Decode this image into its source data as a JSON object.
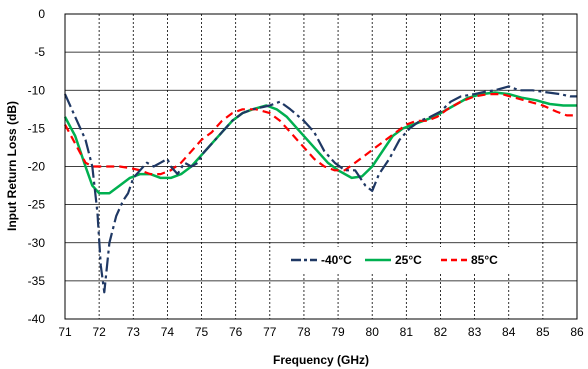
{
  "chart_data": {
    "type": "line",
    "title": "",
    "xlabel": "Frequency (GHz)",
    "ylabel": "Input Return Loss (dB)",
    "xlim": [
      71,
      86
    ],
    "ylim": [
      -40,
      0
    ],
    "x_ticks": [
      71,
      72,
      73,
      74,
      75,
      76,
      77,
      78,
      79,
      80,
      81,
      82,
      83,
      84,
      85,
      86
    ],
    "y_ticks": [
      0,
      -5,
      -10,
      -15,
      -20,
      -25,
      -30,
      -35,
      -40
    ],
    "x_grid": "dashed vertical at each integer",
    "y_grid": "solid horizontal at each 5 dB",
    "legend_position": "lower-right inside plot",
    "series": [
      {
        "name": "-40°C",
        "color": "#1f3864",
        "style": "dash-dot",
        "points": [
          [
            71.0,
            -10.5
          ],
          [
            71.3,
            -13.5
          ],
          [
            71.6,
            -16.5
          ],
          [
            71.8,
            -20.0
          ],
          [
            71.95,
            -26.0
          ],
          [
            72.05,
            -33.0
          ],
          [
            72.15,
            -36.5
          ],
          [
            72.3,
            -30.0
          ],
          [
            72.5,
            -26.5
          ],
          [
            72.7,
            -24.5
          ],
          [
            72.85,
            -23.5
          ],
          [
            73.0,
            -21.5
          ],
          [
            73.2,
            -20.5
          ],
          [
            73.4,
            -19.5
          ],
          [
            73.6,
            -20.0
          ],
          [
            73.8,
            -19.5
          ],
          [
            74.0,
            -19.0
          ],
          [
            74.1,
            -20.0
          ],
          [
            74.3,
            -21.0
          ],
          [
            74.5,
            -19.5
          ],
          [
            74.7,
            -20.0
          ],
          [
            74.9,
            -19.5
          ],
          [
            75.0,
            -18.5
          ],
          [
            75.3,
            -17.0
          ],
          [
            75.6,
            -15.5
          ],
          [
            75.9,
            -14.0
          ],
          [
            76.2,
            -13.0
          ],
          [
            76.5,
            -12.5
          ],
          [
            76.8,
            -12.2
          ],
          [
            77.0,
            -12.0
          ],
          [
            77.3,
            -11.5
          ],
          [
            77.6,
            -12.5
          ],
          [
            78.0,
            -14.0
          ],
          [
            78.3,
            -15.5
          ],
          [
            78.6,
            -18.0
          ],
          [
            78.9,
            -19.5
          ],
          [
            79.2,
            -20.5
          ],
          [
            79.5,
            -20.5
          ],
          [
            79.8,
            -22.5
          ],
          [
            80.0,
            -23.2
          ],
          [
            80.2,
            -21.0
          ],
          [
            80.5,
            -19.0
          ],
          [
            80.8,
            -16.5
          ],
          [
            81.1,
            -15.0
          ],
          [
            81.4,
            -14.0
          ],
          [
            81.7,
            -13.5
          ],
          [
            82.0,
            -12.8
          ],
          [
            82.3,
            -11.5
          ],
          [
            82.6,
            -10.8
          ],
          [
            83.0,
            -10.5
          ],
          [
            83.3,
            -10.2
          ],
          [
            83.6,
            -10.0
          ],
          [
            84.0,
            -9.5
          ],
          [
            84.3,
            -10.0
          ],
          [
            84.7,
            -10.0
          ],
          [
            85.0,
            -10.2
          ],
          [
            85.5,
            -10.5
          ],
          [
            85.8,
            -10.8
          ],
          [
            86.0,
            -10.8
          ]
        ]
      },
      {
        "name": "25°C",
        "color": "#00b050",
        "style": "solid",
        "points": [
          [
            71.0,
            -13.5
          ],
          [
            71.3,
            -16.0
          ],
          [
            71.6,
            -20.0
          ],
          [
            71.8,
            -22.5
          ],
          [
            72.0,
            -23.5
          ],
          [
            72.3,
            -23.5
          ],
          [
            72.6,
            -22.5
          ],
          [
            72.9,
            -21.5
          ],
          [
            73.2,
            -21.0
          ],
          [
            73.5,
            -21.0
          ],
          [
            73.8,
            -21.5
          ],
          [
            74.1,
            -21.5
          ],
          [
            74.4,
            -21.0
          ],
          [
            74.7,
            -20.0
          ],
          [
            75.0,
            -18.5
          ],
          [
            75.3,
            -17.0
          ],
          [
            75.6,
            -15.5
          ],
          [
            75.9,
            -14.0
          ],
          [
            76.2,
            -13.0
          ],
          [
            76.5,
            -12.5
          ],
          [
            76.9,
            -12.0
          ],
          [
            77.2,
            -12.5
          ],
          [
            77.5,
            -13.5
          ],
          [
            77.8,
            -15.0
          ],
          [
            78.1,
            -16.5
          ],
          [
            78.4,
            -18.0
          ],
          [
            78.7,
            -19.5
          ],
          [
            79.0,
            -20.5
          ],
          [
            79.4,
            -21.5
          ],
          [
            79.7,
            -21.3
          ],
          [
            80.0,
            -20.0
          ],
          [
            80.3,
            -18.0
          ],
          [
            80.6,
            -16.0
          ],
          [
            80.9,
            -15.0
          ],
          [
            81.2,
            -14.5
          ],
          [
            81.5,
            -14.0
          ],
          [
            81.8,
            -13.5
          ],
          [
            82.0,
            -13.0
          ],
          [
            82.4,
            -12.0
          ],
          [
            82.8,
            -11.0
          ],
          [
            83.2,
            -10.5
          ],
          [
            83.6,
            -10.3
          ],
          [
            84.0,
            -10.5
          ],
          [
            84.4,
            -11.0
          ],
          [
            84.8,
            -11.3
          ],
          [
            85.2,
            -11.8
          ],
          [
            85.6,
            -12.0
          ],
          [
            86.0,
            -12.0
          ]
        ]
      },
      {
        "name": "85°C",
        "color": "#ff0000",
        "style": "dashed",
        "points": [
          [
            71.0,
            -14.5
          ],
          [
            71.3,
            -17.0
          ],
          [
            71.6,
            -19.5
          ],
          [
            71.8,
            -20.0
          ],
          [
            72.0,
            -20.0
          ],
          [
            72.3,
            -20.0
          ],
          [
            72.6,
            -20.0
          ],
          [
            72.9,
            -20.2
          ],
          [
            73.2,
            -20.5
          ],
          [
            73.5,
            -21.0
          ],
          [
            73.8,
            -21.0
          ],
          [
            74.1,
            -20.5
          ],
          [
            74.4,
            -19.5
          ],
          [
            74.7,
            -18.0
          ],
          [
            75.0,
            -16.5
          ],
          [
            75.3,
            -15.5
          ],
          [
            75.6,
            -14.0
          ],
          [
            75.9,
            -13.0
          ],
          [
            76.2,
            -12.5
          ],
          [
            76.6,
            -12.5
          ],
          [
            77.0,
            -13.0
          ],
          [
            77.3,
            -14.0
          ],
          [
            77.6,
            -15.5
          ],
          [
            78.0,
            -17.5
          ],
          [
            78.3,
            -19.0
          ],
          [
            78.6,
            -20.0
          ],
          [
            78.9,
            -20.5
          ],
          [
            79.2,
            -20.5
          ],
          [
            79.5,
            -19.5
          ],
          [
            79.8,
            -18.5
          ],
          [
            80.1,
            -17.5
          ],
          [
            80.4,
            -16.5
          ],
          [
            80.7,
            -15.5
          ],
          [
            81.0,
            -14.5
          ],
          [
            81.3,
            -14.0
          ],
          [
            81.6,
            -14.0
          ],
          [
            81.9,
            -13.5
          ],
          [
            82.2,
            -12.5
          ],
          [
            82.6,
            -11.5
          ],
          [
            83.0,
            -10.8
          ],
          [
            83.4,
            -10.5
          ],
          [
            83.8,
            -10.5
          ],
          [
            84.2,
            -11.0
          ],
          [
            84.6,
            -11.5
          ],
          [
            85.0,
            -12.0
          ],
          [
            85.4,
            -12.8
          ],
          [
            85.7,
            -13.3
          ],
          [
            86.0,
            -13.3
          ]
        ]
      }
    ]
  }
}
